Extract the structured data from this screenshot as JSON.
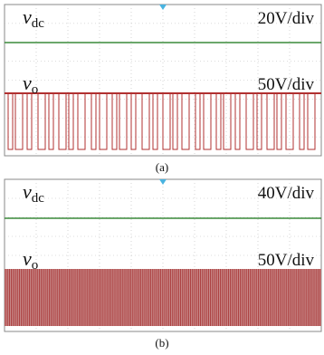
{
  "panels": [
    {
      "signals": [
        {
          "symbol": "v",
          "subscript": "dc",
          "scale": "20V/div"
        },
        {
          "symbol": "v",
          "subscript": "o",
          "scale": "50V/div"
        }
      ],
      "caption": "(a)"
    },
    {
      "signals": [
        {
          "symbol": "v",
          "subscript": "dc",
          "scale": "40V/div"
        },
        {
          "symbol": "v",
          "subscript": "o",
          "scale": "50V/div"
        }
      ],
      "caption": "(b)"
    }
  ]
}
